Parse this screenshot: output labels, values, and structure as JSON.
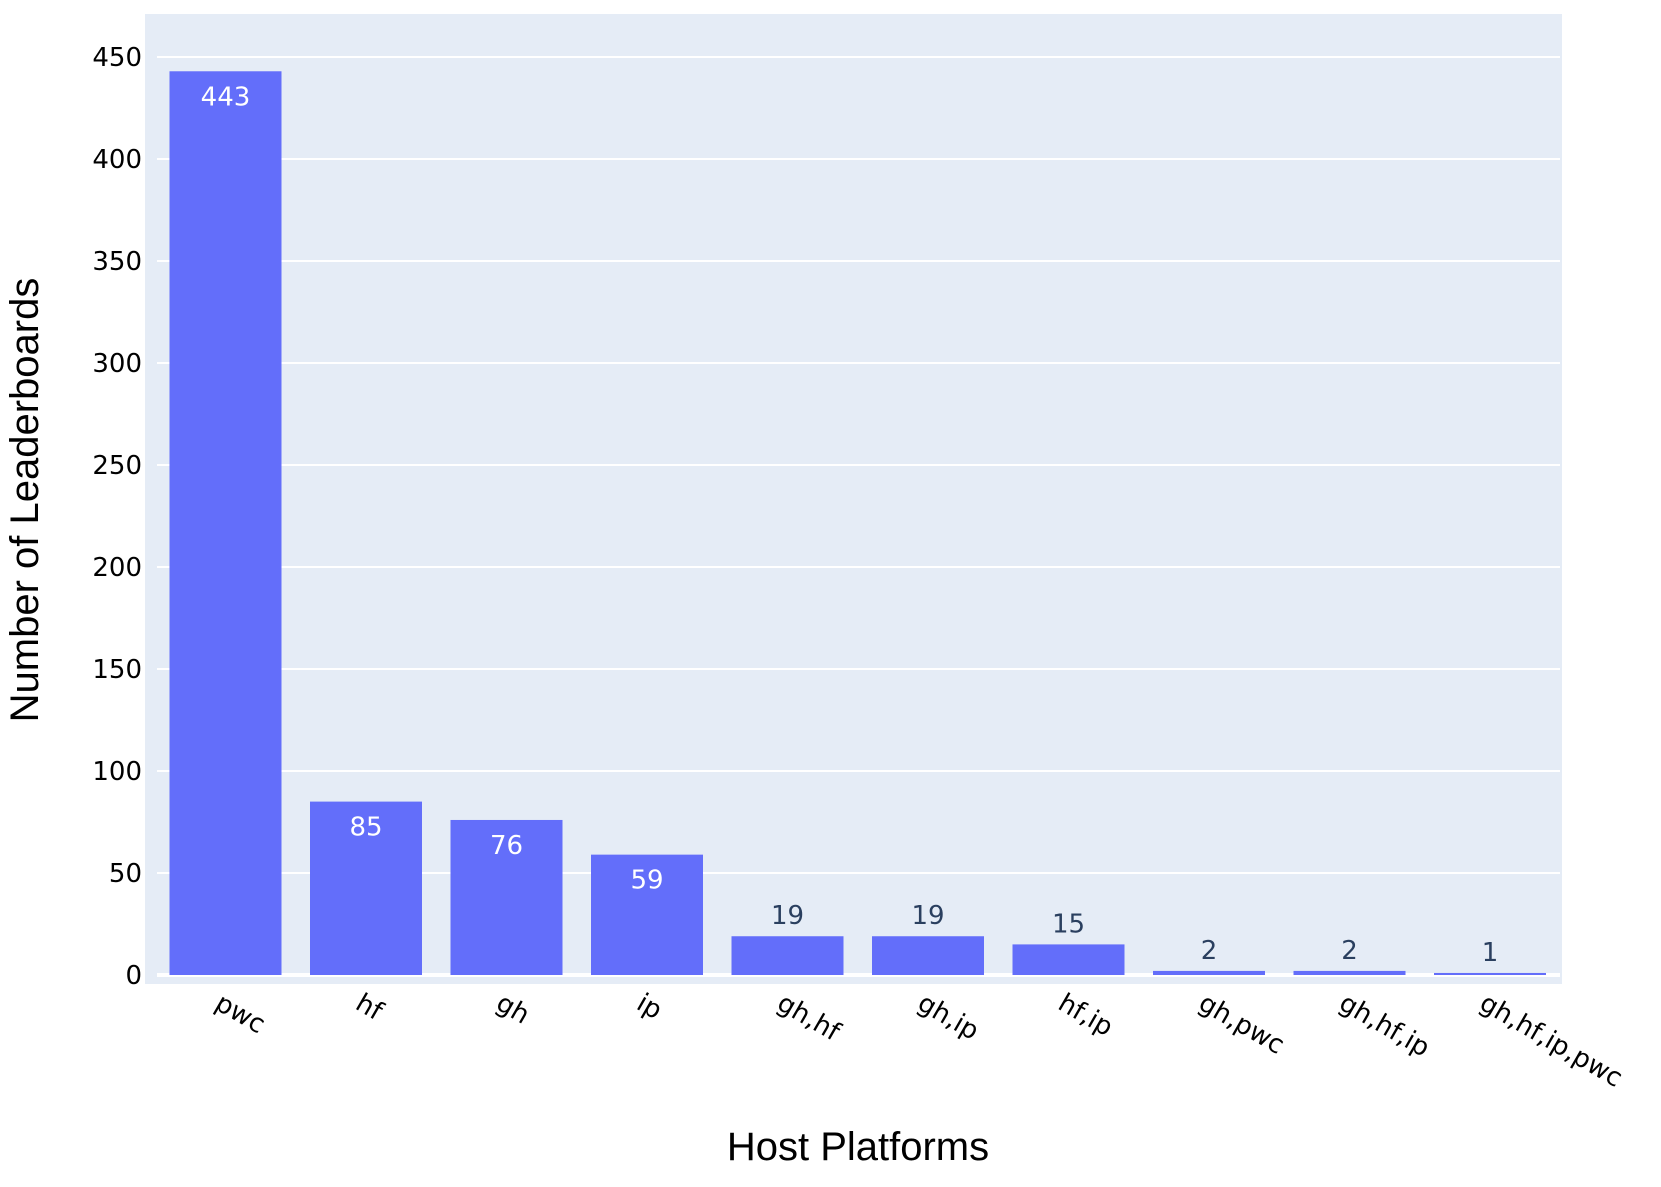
{
  "chart_data": {
    "type": "bar",
    "title": "",
    "xlabel": "Host Platforms",
    "ylabel": "Number of Leaderboards",
    "categories": [
      "pwc",
      "hf",
      "gh",
      "ip",
      "gh,hf",
      "gh,ip",
      "hf,ip",
      "gh,pwc",
      "gh,hf,ip",
      "gh,hf,ip,pwc"
    ],
    "values": [
      443,
      85,
      76,
      59,
      19,
      19,
      15,
      2,
      2,
      1
    ],
    "ylim": [
      0,
      450
    ],
    "yticks": [
      0,
      50,
      100,
      150,
      200,
      250,
      300,
      350,
      400,
      450
    ],
    "grid": true,
    "legend": "none",
    "colors": {
      "bar": "#636efa",
      "plot_bg": "#e5ecf6",
      "grid": "#ffffff",
      "label_inside": "#ffffff",
      "label_outside": "#2a3f5f"
    }
  }
}
